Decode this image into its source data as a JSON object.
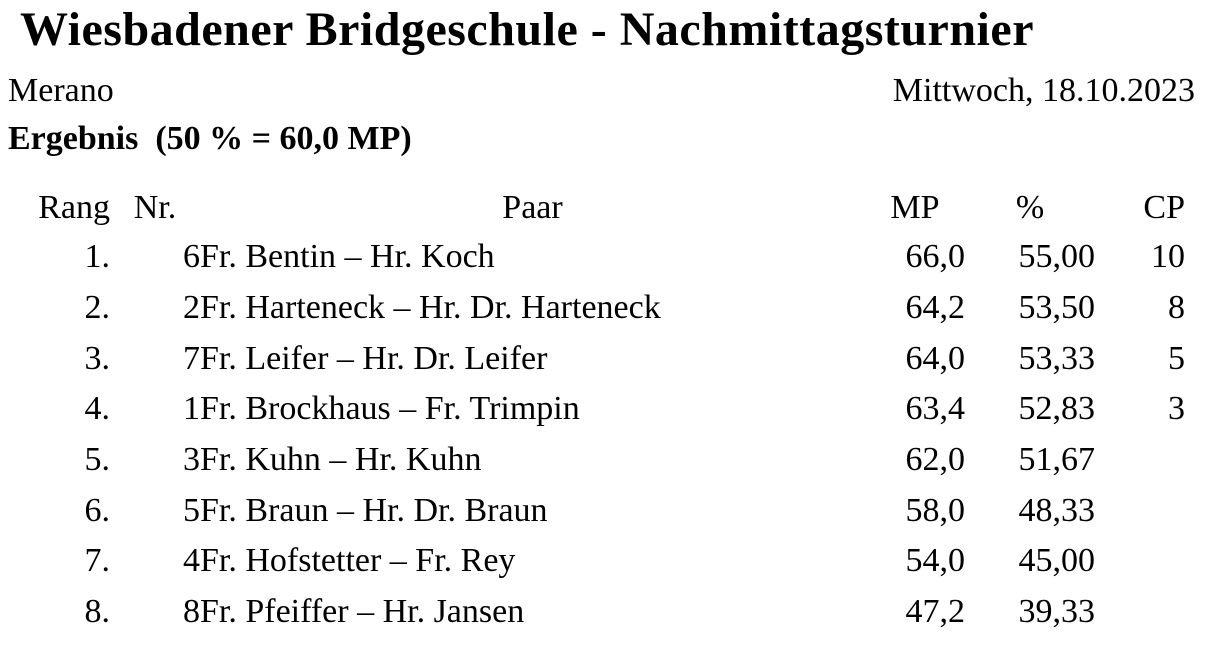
{
  "page": {
    "title": "Wiesbadener Bridgeschule - Nachmittagsturnier",
    "location": "Merano",
    "date": "Mittwoch, 18.10.2023",
    "result_line": "Ergebnis  (50 % = 60,0 MP)"
  },
  "colors": {
    "text": "#000000",
    "background": "#ffffff"
  },
  "table": {
    "headers": {
      "rank": "Rang",
      "number": "Nr.",
      "pair": "Paar",
      "mp": "MP",
      "percent": "%",
      "cp": "CP"
    },
    "rows": [
      {
        "rank": "1.",
        "number": "6",
        "pair": "Fr. Bentin – Hr. Koch",
        "mp": "66,0",
        "percent": "55,00",
        "cp": "10"
      },
      {
        "rank": "2.",
        "number": "2",
        "pair": "Fr. Harteneck – Hr. Dr. Harteneck",
        "mp": "64,2",
        "percent": "53,50",
        "cp": "8"
      },
      {
        "rank": "3.",
        "number": "7",
        "pair": "Fr. Leifer – Hr. Dr. Leifer",
        "mp": "64,0",
        "percent": "53,33",
        "cp": "5"
      },
      {
        "rank": "4.",
        "number": "1",
        "pair": "Fr. Brockhaus – Fr. Trimpin",
        "mp": "63,4",
        "percent": "52,83",
        "cp": "3"
      },
      {
        "rank": "5.",
        "number": "3",
        "pair": "Fr. Kuhn – Hr. Kuhn",
        "mp": "62,0",
        "percent": "51,67",
        "cp": ""
      },
      {
        "rank": "6.",
        "number": "5",
        "pair": "Fr. Braun – Hr. Dr. Braun",
        "mp": "58,0",
        "percent": "48,33",
        "cp": ""
      },
      {
        "rank": "7.",
        "number": "4",
        "pair": "Fr. Hofstetter – Fr. Rey",
        "mp": "54,0",
        "percent": "45,00",
        "cp": ""
      },
      {
        "rank": "8.",
        "number": "8",
        "pair": "Fr. Pfeiffer – Hr. Jansen",
        "mp": "47,2",
        "percent": "39,33",
        "cp": ""
      }
    ]
  }
}
